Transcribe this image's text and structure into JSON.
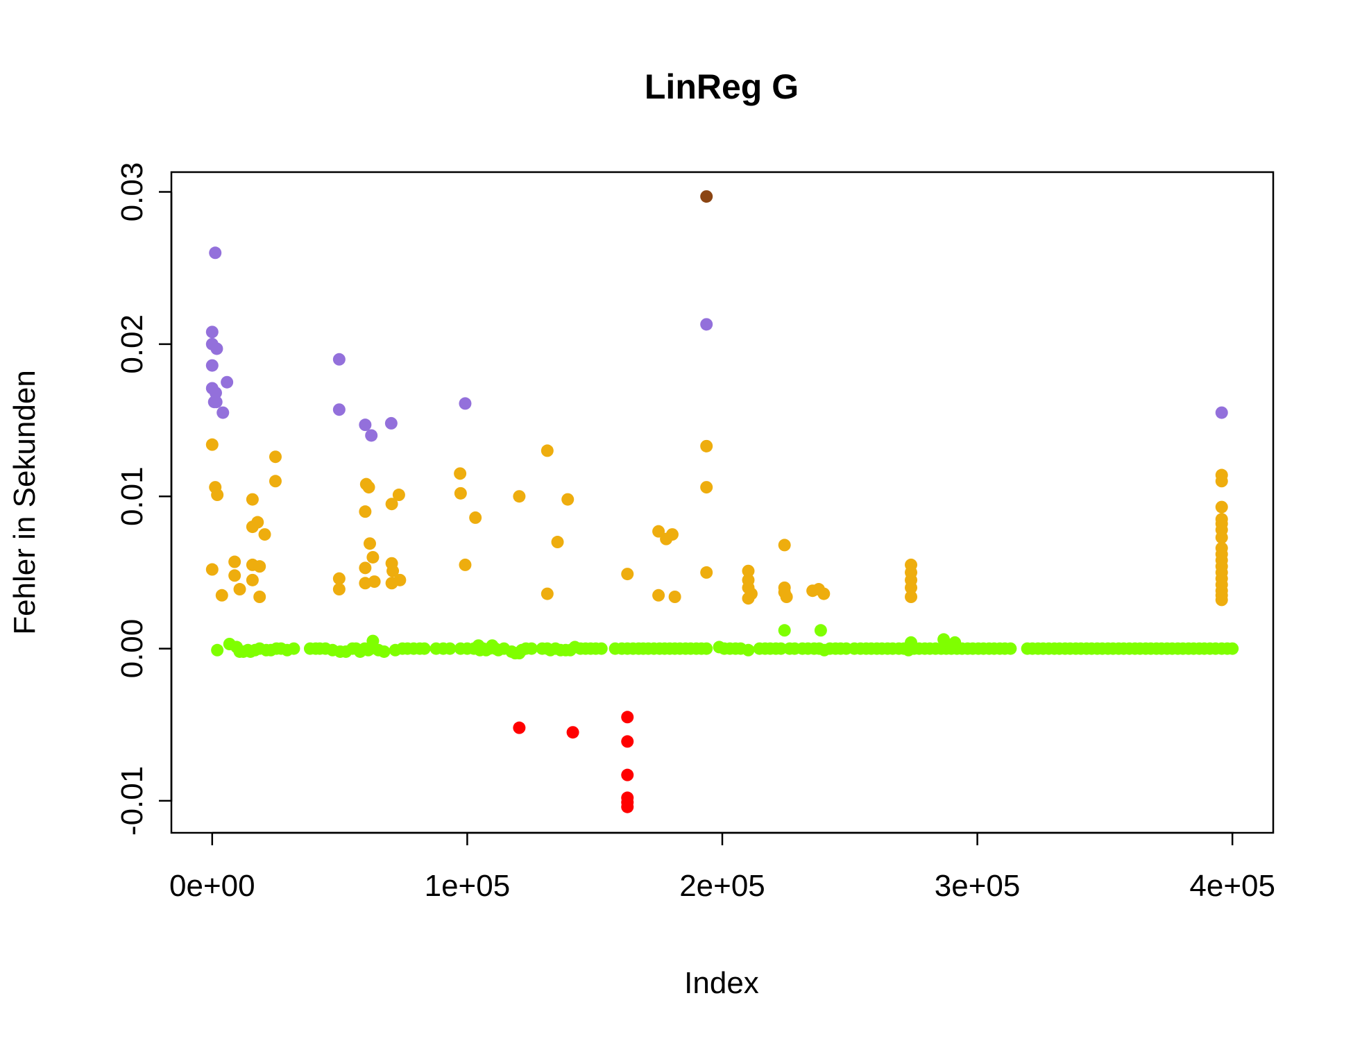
{
  "chart_data": {
    "type": "scatter",
    "title": "LinReg G",
    "xlabel": "Index",
    "ylabel": "Fehler in Sekunden",
    "xlim": [
      -16000,
      416000
    ],
    "ylim": [
      -0.0121,
      0.0313
    ],
    "xticks": [
      0,
      100000,
      200000,
      300000,
      400000
    ],
    "xtick_labels": [
      "0e+00",
      "1e+05",
      "2e+05",
      "3e+05",
      "4e+05"
    ],
    "yticks": [
      -0.01,
      0.0,
      0.01,
      0.02,
      0.03
    ],
    "ytick_labels": [
      "-0.01",
      "0.00",
      "0.01",
      "0.02",
      "0.03"
    ],
    "grid": false,
    "series": [
      {
        "color": "#9370DB",
        "points": [
          [
            1200,
            0.026
          ],
          [
            0,
            0.0208
          ],
          [
            0,
            0.02
          ],
          [
            1800,
            0.0197
          ],
          [
            0,
            0.0186
          ],
          [
            5800,
            0.0175
          ],
          [
            0,
            0.0171
          ],
          [
            1400,
            0.0168
          ],
          [
            800,
            0.0162
          ],
          [
            1600,
            0.0162
          ],
          [
            4200,
            0.0155
          ],
          [
            49800,
            0.019
          ],
          [
            49800,
            0.0157
          ],
          [
            60000,
            0.0147
          ],
          [
            62400,
            0.014
          ],
          [
            70200,
            0.0148
          ],
          [
            99200,
            0.0161
          ],
          [
            193800,
            0.0213
          ],
          [
            395800,
            0.0155
          ]
        ]
      },
      {
        "color": "#8B4513",
        "points": [
          [
            193800,
            0.0297
          ]
        ]
      },
      {
        "color": "#EEAD0E",
        "points": [
          [
            0,
            0.0134
          ],
          [
            1200,
            0.0106
          ],
          [
            2000,
            0.0101
          ],
          [
            0,
            0.0052
          ],
          [
            3800,
            0.0035
          ],
          [
            8800,
            0.0057
          ],
          [
            8800,
            0.0048
          ],
          [
            10800,
            0.0039
          ],
          [
            15800,
            0.0098
          ],
          [
            15800,
            0.008
          ],
          [
            15800,
            0.0055
          ],
          [
            15800,
            0.0045
          ],
          [
            17800,
            0.0083
          ],
          [
            18600,
            0.0054
          ],
          [
            18600,
            0.0034
          ],
          [
            20600,
            0.0075
          ],
          [
            24800,
            0.0126
          ],
          [
            24800,
            0.011
          ],
          [
            49800,
            0.0046
          ],
          [
            49800,
            0.0039
          ],
          [
            60000,
            0.009
          ],
          [
            60400,
            0.0108
          ],
          [
            61400,
            0.0106
          ],
          [
            60000,
            0.0053
          ],
          [
            60000,
            0.0043
          ],
          [
            61800,
            0.0069
          ],
          [
            63000,
            0.006
          ],
          [
            63600,
            0.0044
          ],
          [
            70400,
            0.0095
          ],
          [
            70400,
            0.0056
          ],
          [
            70800,
            0.0051
          ],
          [
            70400,
            0.0043
          ],
          [
            73200,
            0.0101
          ],
          [
            73600,
            0.0045
          ],
          [
            97200,
            0.0115
          ],
          [
            97400,
            0.0102
          ],
          [
            99200,
            0.0055
          ],
          [
            103200,
            0.0086
          ],
          [
            120400,
            0.01
          ],
          [
            131400,
            0.013
          ],
          [
            131400,
            0.0036
          ],
          [
            135400,
            0.007
          ],
          [
            139400,
            0.0098
          ],
          [
            162800,
            0.0049
          ],
          [
            175000,
            0.0077
          ],
          [
            175000,
            0.0035
          ],
          [
            178000,
            0.0072
          ],
          [
            180400,
            0.0075
          ],
          [
            181400,
            0.0034
          ],
          [
            193800,
            0.0133
          ],
          [
            193800,
            0.0106
          ],
          [
            193800,
            0.005
          ],
          [
            210200,
            0.0051
          ],
          [
            210200,
            0.0045
          ],
          [
            210200,
            0.004
          ],
          [
            210200,
            0.0033
          ],
          [
            211400,
            0.0036
          ],
          [
            224400,
            0.0068
          ],
          [
            224400,
            0.004
          ],
          [
            224400,
            0.0037
          ],
          [
            225200,
            0.0034
          ],
          [
            235400,
            0.0038
          ],
          [
            237800,
            0.0039
          ],
          [
            239800,
            0.0036
          ],
          [
            274000,
            0.0055
          ],
          [
            274000,
            0.005
          ],
          [
            274000,
            0.0045
          ],
          [
            274000,
            0.004
          ],
          [
            274000,
            0.0034
          ],
          [
            395800,
            0.0114
          ],
          [
            395800,
            0.011
          ],
          [
            395800,
            0.0093
          ],
          [
            395800,
            0.0085
          ],
          [
            395800,
            0.0082
          ],
          [
            395800,
            0.0078
          ],
          [
            395800,
            0.0073
          ],
          [
            395800,
            0.0066
          ],
          [
            395800,
            0.0062
          ],
          [
            395800,
            0.0058
          ],
          [
            395800,
            0.0054
          ],
          [
            395800,
            0.005
          ],
          [
            395800,
            0.0046
          ],
          [
            395800,
            0.0042
          ],
          [
            395800,
            0.0038
          ],
          [
            395800,
            0.0035
          ],
          [
            395800,
            0.0032
          ]
        ]
      },
      {
        "color": "#FF0000",
        "points": [
          [
            120400,
            -0.0052
          ],
          [
            141400,
            -0.0055
          ],
          [
            162800,
            -0.0045
          ],
          [
            162800,
            -0.0061
          ],
          [
            162800,
            -0.0083
          ],
          [
            162800,
            -0.0098
          ],
          [
            162800,
            -0.0101
          ],
          [
            162800,
            -0.0104
          ]
        ]
      },
      {
        "color": "#7FFF00",
        "points": [
          [
            2000,
            -0.0001
          ],
          [
            6800,
            0.0003
          ],
          [
            9600,
            0.0001
          ],
          [
            10800,
            -0.0002
          ],
          [
            12200,
            -0.0002
          ],
          [
            14000,
            -0.0001
          ],
          [
            15000,
            -0.0002
          ],
          [
            16800,
            -0.0001
          ],
          [
            18600,
            0.0
          ],
          [
            21200,
            -0.0001
          ],
          [
            23000,
            -0.0001
          ],
          [
            25200,
            0.0
          ],
          [
            27000,
            0.0
          ],
          [
            29400,
            -0.0001
          ],
          [
            32000,
            0.0
          ],
          [
            38400,
            0.0
          ],
          [
            40600,
            0.0
          ],
          [
            42200,
            0.0
          ],
          [
            44400,
            0.0
          ],
          [
            47200,
            -0.0001
          ],
          [
            50200,
            -0.0002
          ],
          [
            52400,
            -0.0002
          ],
          [
            55000,
            0.0
          ],
          [
            56400,
            0.0
          ],
          [
            58000,
            -0.0002
          ],
          [
            59800,
            0.0
          ],
          [
            61200,
            -0.0001
          ],
          [
            62200,
            0.0
          ],
          [
            63000,
            0.0005
          ],
          [
            65200,
            -0.0001
          ],
          [
            67400,
            -0.0002
          ],
          [
            71800,
            -0.0001
          ],
          [
            74600,
            0.0
          ],
          [
            76600,
            0.0
          ],
          [
            79000,
            0.0
          ],
          [
            81400,
            0.0
          ],
          [
            83200,
            0.0
          ],
          [
            87800,
            0.0
          ],
          [
            90600,
            0.0
          ],
          [
            93200,
            0.0
          ],
          [
            97400,
            0.0
          ],
          [
            100000,
            0.0
          ],
          [
            102600,
            0.0
          ],
          [
            104400,
            0.0002
          ],
          [
            105000,
            -0.0001
          ],
          [
            106200,
            0.0
          ],
          [
            107400,
            -0.0001
          ],
          [
            108600,
            0.0
          ],
          [
            109800,
            0.0002
          ],
          [
            111000,
            0.0
          ],
          [
            112200,
            -0.0001
          ],
          [
            114400,
            0.0
          ],
          [
            117400,
            -0.0002
          ],
          [
            118800,
            -0.0003
          ],
          [
            120400,
            -0.0003
          ],
          [
            121400,
            -0.0001
          ],
          [
            123000,
            0.0
          ],
          [
            125200,
            0.0
          ],
          [
            129400,
            0.0
          ],
          [
            131400,
            0.0
          ],
          [
            132600,
            -0.0001
          ],
          [
            134600,
            0.0
          ],
          [
            136600,
            -0.0001
          ],
          [
            138600,
            -0.0001
          ],
          [
            140400,
            -0.0001
          ],
          [
            142200,
            0.0001
          ],
          [
            144400,
            0.0
          ],
          [
            146400,
            0.0
          ],
          [
            148400,
            0.0
          ],
          [
            150400,
            0.0
          ],
          [
            152600,
            0.0
          ],
          [
            158000,
            0.0
          ],
          [
            160600,
            0.0
          ],
          [
            162800,
            0.0
          ],
          [
            165000,
            0.0
          ],
          [
            167200,
            0.0
          ],
          [
            169000,
            0.0
          ],
          [
            171000,
            0.0
          ],
          [
            173200,
            0.0
          ],
          [
            175400,
            0.0
          ],
          [
            177400,
            0.0
          ],
          [
            179400,
            0.0
          ],
          [
            181400,
            0.0
          ],
          [
            183400,
            0.0
          ],
          [
            185600,
            0.0
          ],
          [
            187600,
            0.0
          ],
          [
            189800,
            0.0
          ],
          [
            191800,
            0.0
          ],
          [
            193800,
            0.0
          ],
          [
            198800,
            0.0001
          ],
          [
            200800,
            0.0
          ],
          [
            203000,
            0.0
          ],
          [
            205200,
            0.0
          ],
          [
            207200,
            0.0
          ],
          [
            210200,
            -0.0001
          ],
          [
            214600,
            0.0
          ],
          [
            216800,
            0.0
          ],
          [
            218800,
            0.0
          ],
          [
            221000,
            0.0
          ],
          [
            223000,
            0.0
          ],
          [
            224400,
            0.0012
          ],
          [
            226400,
            0.0
          ],
          [
            228400,
            0.0
          ],
          [
            231400,
            0.0
          ],
          [
            233600,
            0.0
          ],
          [
            236000,
            0.0
          ],
          [
            238000,
            0.0
          ],
          [
            238600,
            0.0012
          ],
          [
            240000,
            -0.0001
          ],
          [
            242200,
            0.0
          ],
          [
            244400,
            0.0
          ],
          [
            246400,
            0.0
          ],
          [
            248600,
            0.0
          ],
          [
            251800,
            0.0
          ],
          [
            254200,
            0.0
          ],
          [
            256400,
            0.0
          ],
          [
            258400,
            0.0
          ],
          [
            260600,
            0.0
          ],
          [
            262600,
            0.0
          ],
          [
            264800,
            0.0
          ],
          [
            266800,
            0.0
          ],
          [
            269200,
            0.0
          ],
          [
            271200,
            0.0
          ],
          [
            273000,
            -0.0001
          ],
          [
            274000,
            0.0004
          ],
          [
            275200,
            0.0
          ],
          [
            277200,
            0.0
          ],
          [
            279400,
            0.0
          ],
          [
            281400,
            0.0
          ],
          [
            283600,
            0.0
          ],
          [
            285800,
            0.0
          ],
          [
            286800,
            0.0006
          ],
          [
            287800,
            0.0
          ],
          [
            289800,
            0.0
          ],
          [
            291200,
            0.0004
          ],
          [
            292000,
            0.0
          ],
          [
            294000,
            0.0
          ],
          [
            296200,
            0.0
          ],
          [
            298200,
            0.0
          ],
          [
            300400,
            0.0
          ],
          [
            302400,
            0.0
          ],
          [
            304600,
            0.0
          ],
          [
            306600,
            0.0
          ],
          [
            308800,
            0.0
          ],
          [
            310800,
            0.0
          ],
          [
            313000,
            0.0
          ],
          [
            319600,
            0.0
          ],
          [
            321600,
            0.0
          ],
          [
            323800,
            0.0
          ],
          [
            325800,
            0.0
          ],
          [
            328000,
            0.0
          ],
          [
            330200,
            0.0
          ],
          [
            332200,
            0.0
          ],
          [
            334400,
            0.0
          ],
          [
            336400,
            0.0
          ],
          [
            338600,
            0.0
          ],
          [
            340600,
            0.0
          ],
          [
            342800,
            0.0
          ],
          [
            344800,
            0.0
          ],
          [
            347000,
            0.0
          ],
          [
            349000,
            0.0
          ],
          [
            351200,
            0.0
          ],
          [
            353200,
            0.0
          ],
          [
            355400,
            0.0
          ],
          [
            357400,
            0.0
          ],
          [
            359600,
            0.0
          ],
          [
            361800,
            0.0
          ],
          [
            363800,
            0.0
          ],
          [
            366000,
            0.0
          ],
          [
            368000,
            0.0
          ],
          [
            370200,
            0.0
          ],
          [
            372200,
            0.0
          ],
          [
            374400,
            0.0
          ],
          [
            376400,
            0.0
          ],
          [
            378600,
            0.0
          ],
          [
            380600,
            0.0
          ],
          [
            382800,
            0.0
          ],
          [
            384800,
            0.0
          ],
          [
            387000,
            0.0
          ],
          [
            389000,
            0.0
          ],
          [
            391200,
            0.0
          ],
          [
            393400,
            0.0
          ],
          [
            395800,
            0.0
          ],
          [
            398000,
            0.0
          ],
          [
            400000,
            0.0
          ]
        ]
      }
    ]
  }
}
